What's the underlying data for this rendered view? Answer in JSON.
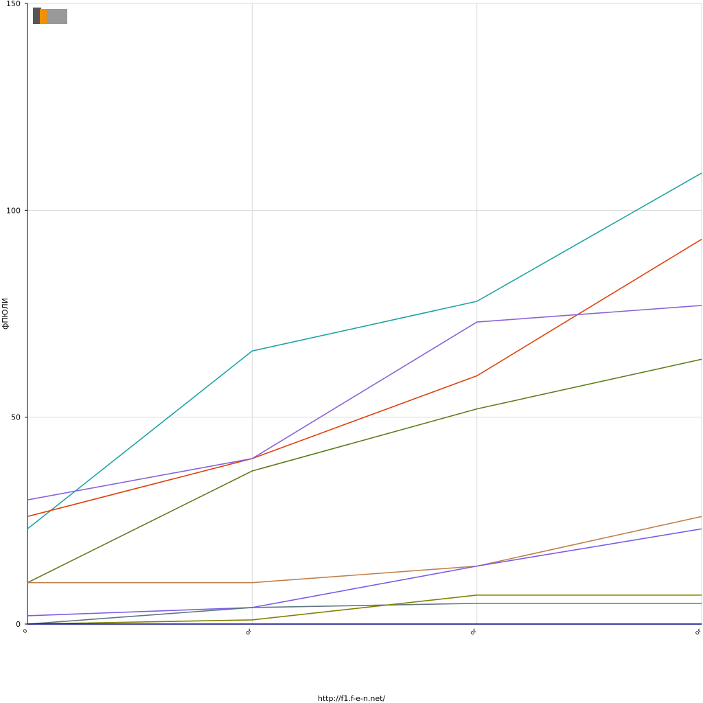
{
  "chart_data": {
    "type": "line",
    "y_label": "фПЮЛИ",
    "footer": "http://f1.f-e-n.net/",
    "categories": [
      "o",
      "or",
      "or",
      "or"
    ],
    "ylim": [
      0,
      150
    ],
    "yticks": [
      0,
      50,
      100,
      150
    ],
    "grid": true,
    "series": [
      {
        "color": "#1fa3a3",
        "values": [
          23,
          66,
          78,
          109
        ]
      },
      {
        "color": "#e0420f",
        "values": [
          26,
          40,
          60,
          93
        ]
      },
      {
        "color": "#8a62d6",
        "values": [
          30,
          40,
          73,
          77
        ]
      },
      {
        "color": "#5e7d1b",
        "values": [
          10,
          37,
          52,
          64
        ]
      },
      {
        "color": "#c0804a",
        "values": [
          10,
          10,
          14,
          26
        ]
      },
      {
        "color": "#7a5ce6",
        "values": [
          2,
          4,
          14,
          23
        ]
      },
      {
        "color": "#5f7581",
        "values": [
          0,
          4,
          5,
          5
        ]
      },
      {
        "color": "#7f8000",
        "values": [
          0,
          1,
          7,
          7
        ]
      },
      {
        "color": "#000080",
        "values": [
          0,
          0,
          0,
          0
        ]
      }
    ]
  }
}
